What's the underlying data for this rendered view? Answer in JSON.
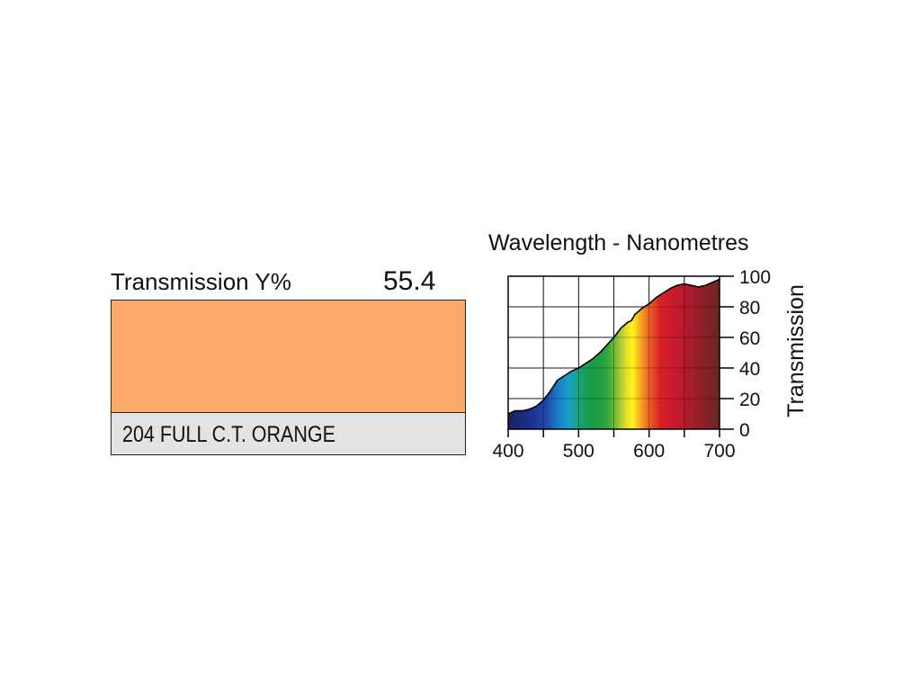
{
  "filter": {
    "transmission_label": "Transmission Y%",
    "transmission_value": "55.4",
    "name": "204 FULL C.T. ORANGE",
    "swatch_color": "#fea96c"
  },
  "chart_data": {
    "type": "area",
    "title": "Wavelength - Nanometres",
    "xlabel": "",
    "ylabel": "Transmission",
    "xlim": [
      400,
      700
    ],
    "ylim": [
      0,
      100
    ],
    "xticks": [
      400,
      500,
      600,
      700
    ],
    "yticks": [
      0,
      20,
      40,
      60,
      80,
      100
    ],
    "grid": true,
    "x": [
      400,
      410,
      420,
      430,
      440,
      450,
      460,
      470,
      480,
      490,
      500,
      510,
      520,
      530,
      540,
      550,
      560,
      570,
      575,
      580,
      590,
      600,
      610,
      620,
      630,
      640,
      650,
      660,
      670,
      680,
      690,
      700
    ],
    "y": [
      10,
      12,
      12,
      13,
      15,
      19,
      25,
      32,
      35,
      38,
      40,
      43,
      46,
      50,
      55,
      60,
      66,
      70,
      71,
      75,
      79,
      82,
      86,
      89,
      92,
      94,
      95,
      94,
      93,
      94,
      96,
      98
    ]
  }
}
